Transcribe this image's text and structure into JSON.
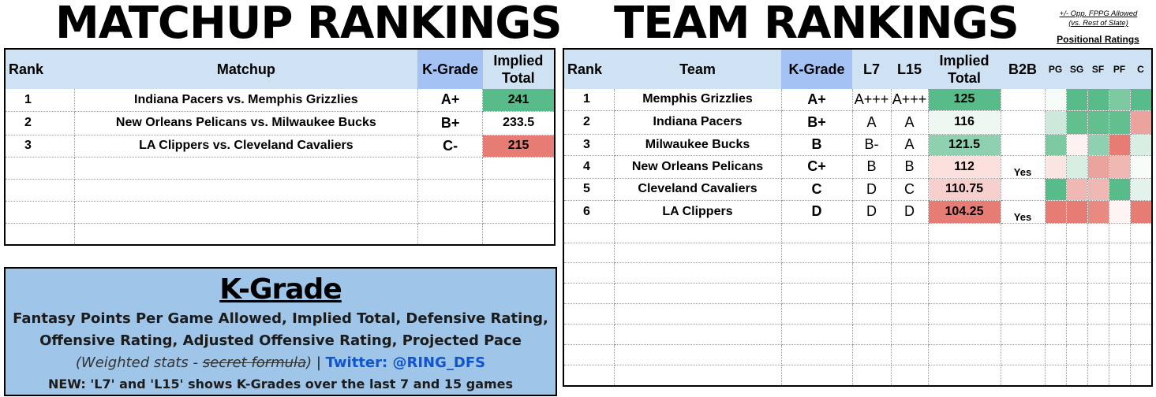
{
  "titles": {
    "matchup": "MATCHUP RANKINGS",
    "team": "TEAM RANKINGS",
    "note_line1": "+/- Opp. FPPG Allowed",
    "note_line2": "(vs. Rest of Slate)",
    "positional": "Positional Ratings"
  },
  "matchup_table": {
    "headers": {
      "rank": "Rank",
      "matchup": "Matchup",
      "kgrade": "K-Grade",
      "implied1": "Implied",
      "implied2": "Total"
    },
    "rows": [
      {
        "rank": "1",
        "matchup": "Indiana Pacers vs. Memphis Grizzlies",
        "kgrade": "A+",
        "implied": "241",
        "implied_color": "#57bb8a"
      },
      {
        "rank": "2",
        "matchup": "New Orleans Pelicans vs. Milwaukee Bucks",
        "kgrade": "B+",
        "implied": "233.5",
        "implied_color": "#ffffff"
      },
      {
        "rank": "3",
        "matchup": "LA Clippers vs. Cleveland Cavaliers",
        "kgrade": "C-",
        "implied": "215",
        "implied_color": "#e67c73"
      }
    ]
  },
  "team_table": {
    "headers": {
      "rank": "Rank",
      "team": "Team",
      "kgrade": "K-Grade",
      "l7": "L7",
      "l15": "L15",
      "implied1": "Implied",
      "implied2": "Total",
      "b2b": "B2B",
      "pg": "PG",
      "sg": "SG",
      "sf": "SF",
      "pf": "PF",
      "c": "C"
    },
    "rows": [
      {
        "rank": "1",
        "team": "Memphis Grizzlies",
        "kgrade": "A+",
        "l7": "A+++",
        "l15": "A+++",
        "implied": "125",
        "implied_color": "#57bb8a",
        "b2b": "",
        "pos_colors": [
          "#f6fbf8",
          "#57bb8a",
          "#57bb8a",
          "#7cc9a2",
          "#57bb8a"
        ]
      },
      {
        "rank": "2",
        "team": "Indiana Pacers",
        "kgrade": "B+",
        "l7": "A",
        "l15": "A",
        "implied": "116",
        "implied_color": "#eef7f2",
        "b2b": "",
        "pos_colors": [
          "#cde9db",
          "#62c08f",
          "#62c08f",
          "#62c08f",
          "#eba39d"
        ]
      },
      {
        "rank": "3",
        "team": "Milwaukee Bucks",
        "kgrade": "B",
        "l7": "B-",
        "l15": "A",
        "implied": "121.5",
        "implied_color": "#8fd0b0",
        "b2b": "",
        "pos_colors": [
          "#7cc9a2",
          "#fdf2f1",
          "#8fd0b0",
          "#e67c73",
          "#d8eee3"
        ]
      },
      {
        "rank": "4",
        "team": "New Orleans Pelicans",
        "kgrade": "C+",
        "l7": "B",
        "l15": "B",
        "implied": "112",
        "implied_color": "#fbe0de",
        "b2b": "Yes",
        "pos_colors": [
          "#fbe5e3",
          "#d8eee3",
          "#eba39d",
          "#f0b8b3",
          "#f7fcf9"
        ]
      },
      {
        "rank": "5",
        "team": "Cleveland Cavaliers",
        "kgrade": "C",
        "l7": "D",
        "l15": "C",
        "implied": "110.75",
        "implied_color": "#f7cfcc",
        "b2b": "",
        "pos_colors": [
          "#57bb8a",
          "#f0b8b3",
          "#f0b8b3",
          "#57bb8a",
          "#e3f3eb"
        ]
      },
      {
        "rank": "6",
        "team": "LA Clippers",
        "kgrade": "D",
        "l7": "D",
        "l15": "D",
        "implied": "104.25",
        "implied_color": "#e67c73",
        "b2b": "Yes",
        "pos_colors": [
          "#e67c73",
          "#e67c73",
          "#e88a81",
          "#fdf4f3",
          "#e67c73"
        ]
      }
    ]
  },
  "kgrade_box": {
    "title": "K-Grade",
    "line1": "Fantasy Points Per Game Allowed, Implied Total, Defensive Rating,",
    "line2": "Offensive Rating, Adjusted Offensive Rating, Projected Pace",
    "italic_prefix": "(Weighted stats - ",
    "italic_strike": "secret formula",
    "italic_suffix": ")",
    "separator": " | ",
    "twitter": "Twitter: @RING_DFS",
    "line4": "NEW: 'L7' and 'L15' shows K-Grades over the last 7 and 15 games"
  }
}
